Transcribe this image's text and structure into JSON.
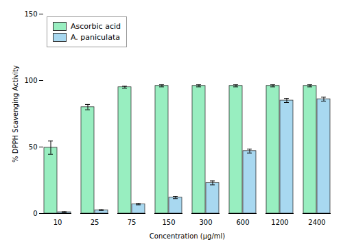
{
  "chart_data": {
    "type": "bar",
    "categories": [
      "10",
      "25",
      "75",
      "150",
      "300",
      "600",
      "1200",
      "2400"
    ],
    "series": [
      {
        "name": "Ascorbic acid",
        "color": "#98EEC0",
        "values": [
          49.5,
          80,
          95,
          96,
          96,
          96,
          96,
          96
        ],
        "errors": [
          5,
          2,
          0.8,
          0.8,
          0.8,
          0.8,
          0.8,
          0.8
        ]
      },
      {
        "name": "A. paniculata",
        "color": "#A8D8F0",
        "values": [
          1,
          2.5,
          7,
          12,
          23,
          47,
          85,
          86
        ],
        "errors": [
          0.3,
          0.3,
          0.5,
          0.8,
          1.5,
          1.5,
          1.5,
          1.5
        ]
      }
    ],
    "xlabel": "Concentration (μg/ml)",
    "ylabel": "% DPPH Scavenging Activity",
    "ylim": [
      0,
      150
    ],
    "yticks": [
      0,
      50,
      100,
      150
    ],
    "legend": "upper left",
    "grid": false
  }
}
